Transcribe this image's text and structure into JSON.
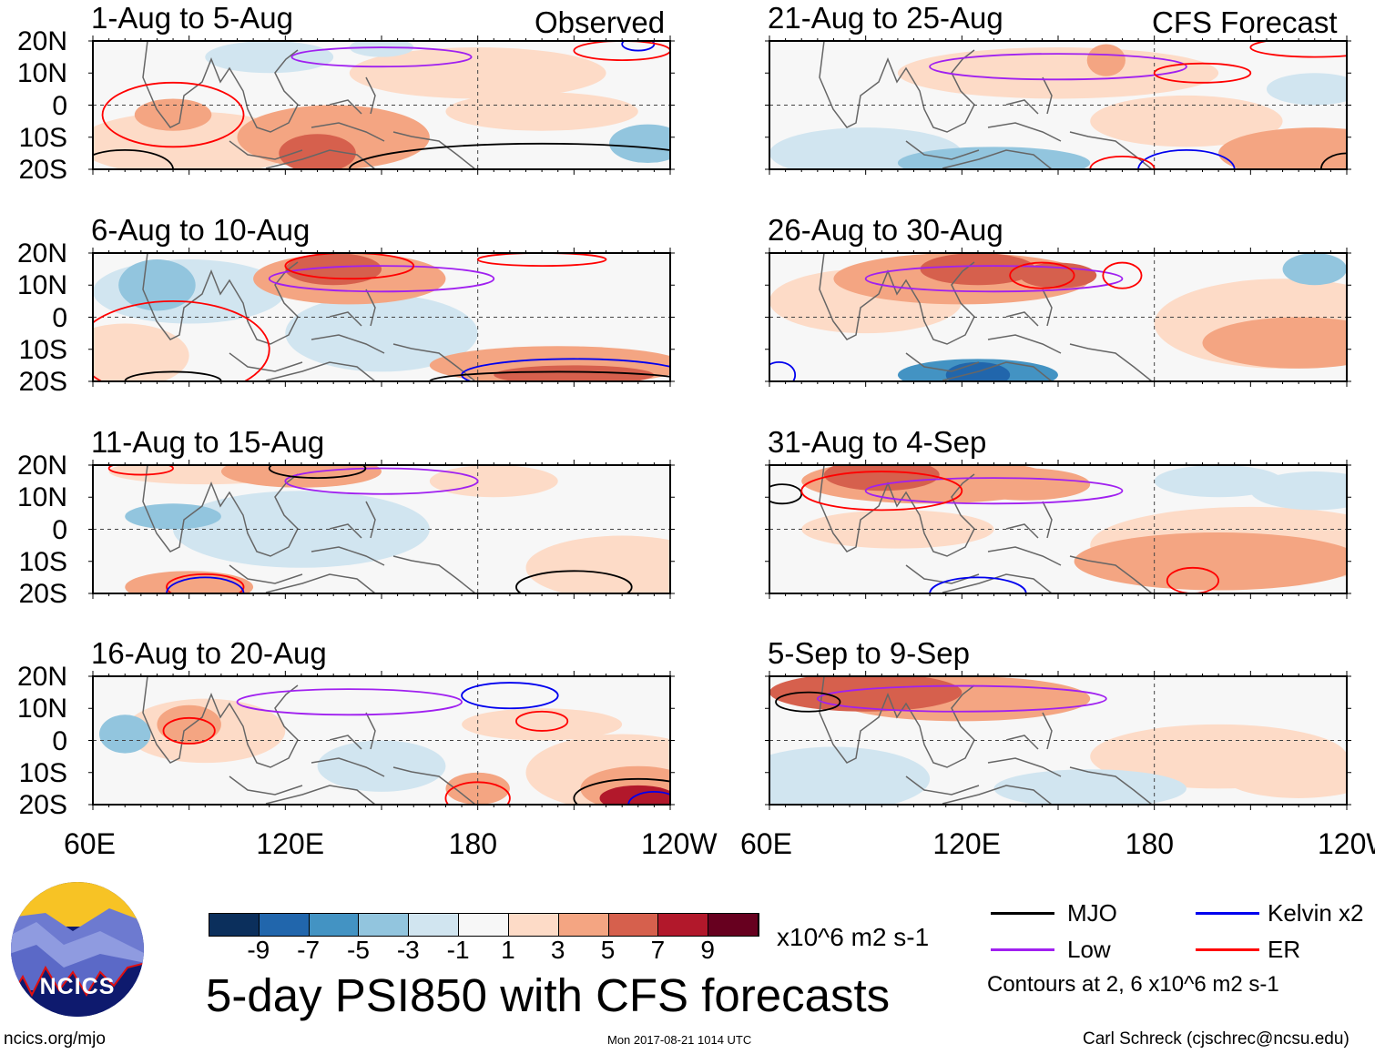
{
  "title": "5-day PSI850 with CFS forecasts",
  "columns": [
    {
      "label": "Observed"
    },
    {
      "label": "CFS Forecast"
    }
  ],
  "lat_labels": [
    "20N",
    "10N",
    "0",
    "10S",
    "20S"
  ],
  "lon_labels": [
    "60E",
    "120E",
    "180",
    "120W"
  ],
  "colorbar": {
    "colors": [
      "#0b2f5c",
      "#2166ac",
      "#4393c3",
      "#92c5de",
      "#d1e5f0",
      "#f7f7f7",
      "#fddbc7",
      "#f4a582",
      "#d6604d",
      "#b2182b",
      "#67001f"
    ],
    "labels": [
      "-9",
      "-7",
      "-5",
      "-3",
      "-1",
      "1",
      "3",
      "5",
      "7",
      "9"
    ],
    "units": "x10^6 m2 s-1"
  },
  "legend": {
    "items": [
      {
        "label": "MJO",
        "color": "#000000"
      },
      {
        "label": "Kelvin x2",
        "color": "#0000ee"
      },
      {
        "label": "Low",
        "color": "#a020f0"
      },
      {
        "label": "ER",
        "color": "#ff0000"
      }
    ],
    "note": "Contours at 2, 6 x10^6 m2 s-1"
  },
  "footer": {
    "site": "ncics.org/mjo",
    "timestamp": "Mon 2017-08-21 1014 UTC",
    "author": "Carl Schreck (cjschrec@ncsu.edu)",
    "logo_text": "NCICS"
  },
  "chart_data": {
    "type": "heatmap",
    "variable": "PSI850 anomaly",
    "lon_range": [
      60,
      240
    ],
    "lat_range": [
      -20,
      20
    ],
    "panels": [
      {
        "title": "1-Aug to 5-Aug",
        "source": "Observed",
        "shading": [
          [
            90,
            -12,
            35,
            10,
            1
          ],
          [
            85,
            -3,
            12,
            5,
            3
          ],
          [
            135,
            -10,
            30,
            10,
            3
          ],
          [
            130,
            -15,
            12,
            6,
            5
          ],
          [
            180,
            10,
            40,
            8,
            1
          ],
          [
            200,
            -2,
            30,
            6,
            1
          ],
          [
            115,
            15,
            20,
            5,
            -1
          ],
          [
            233,
            -12,
            12,
            6,
            -3
          ],
          [
            150,
            18,
            10,
            3,
            -1
          ]
        ],
        "contours": [
          [
            "low",
            150,
            15,
            28,
            3
          ],
          [
            "er",
            85,
            -3,
            22,
            10
          ],
          [
            "mjo",
            200,
            -20,
            60,
            8
          ],
          [
            "mjo",
            70,
            -20,
            15,
            6
          ],
          [
            "kelvin",
            230,
            19,
            5,
            2
          ],
          [
            "er",
            225,
            17,
            15,
            3
          ]
        ]
      },
      {
        "title": "6-Aug to 10-Aug",
        "source": "Observed",
        "shading": [
          [
            135,
            15,
            15,
            5,
            5
          ],
          [
            140,
            12,
            30,
            8,
            3
          ],
          [
            80,
            10,
            12,
            8,
            -3
          ],
          [
            90,
            8,
            30,
            10,
            -1
          ],
          [
            150,
            -5,
            30,
            12,
            -1
          ],
          [
            205,
            -15,
            40,
            6,
            3
          ],
          [
            210,
            -18,
            25,
            3,
            5
          ],
          [
            70,
            -12,
            20,
            10,
            1
          ]
        ],
        "contours": [
          [
            "low",
            150,
            12,
            35,
            4
          ],
          [
            "er",
            140,
            16,
            20,
            4
          ],
          [
            "er",
            85,
            -10,
            30,
            15
          ],
          [
            "mjo",
            85,
            -20,
            15,
            3
          ],
          [
            "kelvin",
            210,
            -18,
            35,
            5
          ],
          [
            "mjo",
            205,
            -20,
            40,
            3
          ],
          [
            "er",
            200,
            18,
            20,
            2
          ]
        ]
      },
      {
        "title": "11-Aug to 15-Aug",
        "source": "Observed",
        "shading": [
          [
            125,
            18,
            25,
            5,
            3
          ],
          [
            95,
            18,
            30,
            4,
            1
          ],
          [
            85,
            4,
            15,
            4,
            -3
          ],
          [
            125,
            0,
            40,
            12,
            -1
          ],
          [
            225,
            -12,
            30,
            10,
            1
          ],
          [
            90,
            -18,
            20,
            5,
            3
          ],
          [
            185,
            15,
            20,
            5,
            1
          ]
        ],
        "contours": [
          [
            "low",
            150,
            15,
            30,
            4
          ],
          [
            "mjo",
            130,
            19,
            15,
            3
          ],
          [
            "er",
            75,
            19,
            10,
            2
          ],
          [
            "er",
            95,
            -18,
            12,
            4
          ],
          [
            "mjo",
            210,
            -18,
            18,
            5
          ],
          [
            "kelvin",
            95,
            -20,
            12,
            5
          ]
        ]
      },
      {
        "title": "16-Aug to 20-Aug",
        "source": "Observed",
        "shading": [
          [
            90,
            5,
            10,
            6,
            3
          ],
          [
            95,
            3,
            25,
            10,
            1
          ],
          [
            70,
            2,
            8,
            6,
            -3
          ],
          [
            225,
            -10,
            30,
            12,
            1
          ],
          [
            230,
            -15,
            18,
            7,
            3
          ],
          [
            230,
            -18,
            12,
            4,
            7
          ],
          [
            180,
            -15,
            10,
            5,
            3
          ],
          [
            200,
            5,
            25,
            5,
            1
          ],
          [
            150,
            -8,
            20,
            8,
            -1
          ]
        ],
        "contours": [
          [
            "low",
            140,
            12,
            35,
            4
          ],
          [
            "kelvin",
            190,
            14,
            15,
            4
          ],
          [
            "er",
            90,
            3,
            8,
            4
          ],
          [
            "er",
            200,
            6,
            8,
            3
          ],
          [
            "mjo",
            230,
            -18,
            20,
            6
          ],
          [
            "er",
            180,
            -18,
            10,
            5
          ],
          [
            "kelvin",
            235,
            -20,
            8,
            4
          ]
        ]
      },
      {
        "title": "21-Aug to 25-Aug",
        "source": "CFS Forecast",
        "shading": [
          [
            150,
            10,
            50,
            8,
            1
          ],
          [
            165,
            14,
            6,
            5,
            3
          ],
          [
            230,
            -15,
            30,
            8,
            3
          ],
          [
            130,
            -18,
            30,
            5,
            -3
          ],
          [
            90,
            -15,
            30,
            8,
            -1
          ],
          [
            230,
            5,
            15,
            5,
            -1
          ],
          [
            190,
            -5,
            30,
            8,
            1
          ]
        ],
        "contours": [
          [
            "low",
            150,
            12,
            40,
            4
          ],
          [
            "er",
            195,
            10,
            15,
            3
          ],
          [
            "er",
            230,
            18,
            20,
            3
          ],
          [
            "kelvin",
            190,
            -20,
            15,
            6
          ],
          [
            "er",
            170,
            -20,
            10,
            4
          ],
          [
            "mjo",
            240,
            -20,
            8,
            5
          ]
        ]
      },
      {
        "title": "26-Aug to 30-Aug",
        "source": "CFS Forecast",
        "shading": [
          [
            120,
            12,
            40,
            8,
            3
          ],
          [
            125,
            15,
            18,
            5,
            5
          ],
          [
            150,
            13,
            12,
            4,
            5
          ],
          [
            125,
            -18,
            25,
            5,
            -5
          ],
          [
            125,
            -18,
            10,
            4,
            -7
          ],
          [
            225,
            -8,
            30,
            8,
            3
          ],
          [
            220,
            -2,
            40,
            14,
            1
          ],
          [
            90,
            5,
            30,
            10,
            1
          ],
          [
            230,
            15,
            10,
            5,
            -3
          ]
        ],
        "contours": [
          [
            "low",
            130,
            12,
            40,
            4
          ],
          [
            "er",
            145,
            13,
            10,
            4
          ],
          [
            "er",
            170,
            13,
            6,
            4
          ],
          [
            "kelvin",
            63,
            -18,
            5,
            4
          ]
        ]
      },
      {
        "title": "31-Aug to 4-Sep",
        "source": "CFS Forecast",
        "shading": [
          [
            110,
            15,
            40,
            7,
            3
          ],
          [
            95,
            17,
            18,
            5,
            5
          ],
          [
            140,
            14,
            20,
            5,
            3
          ],
          [
            200,
            -10,
            45,
            9,
            3
          ],
          [
            210,
            -5,
            50,
            12,
            1
          ],
          [
            230,
            12,
            20,
            6,
            -1
          ],
          [
            200,
            15,
            20,
            5,
            -1
          ],
          [
            100,
            0,
            30,
            6,
            1
          ]
        ],
        "contours": [
          [
            "low",
            130,
            12,
            40,
            4
          ],
          [
            "mjo",
            64,
            11,
            6,
            3
          ],
          [
            "er",
            95,
            12,
            25,
            6
          ],
          [
            "kelvin",
            125,
            -20,
            15,
            5
          ],
          [
            "er",
            192,
            -16,
            8,
            4
          ]
        ]
      },
      {
        "title": "5-Sep to 9-Sep",
        "source": "CFS Forecast",
        "shading": [
          [
            90,
            15,
            30,
            6,
            5
          ],
          [
            120,
            13,
            40,
            7,
            3
          ],
          [
            80,
            -12,
            30,
            10,
            -1
          ],
          [
            200,
            -5,
            40,
            10,
            1
          ],
          [
            225,
            -10,
            25,
            8,
            1
          ],
          [
            160,
            -15,
            30,
            6,
            -1
          ]
        ],
        "contours": [
          [
            "low",
            120,
            13,
            45,
            4
          ],
          [
            "mjo",
            72,
            12,
            10,
            3
          ]
        ]
      }
    ]
  }
}
